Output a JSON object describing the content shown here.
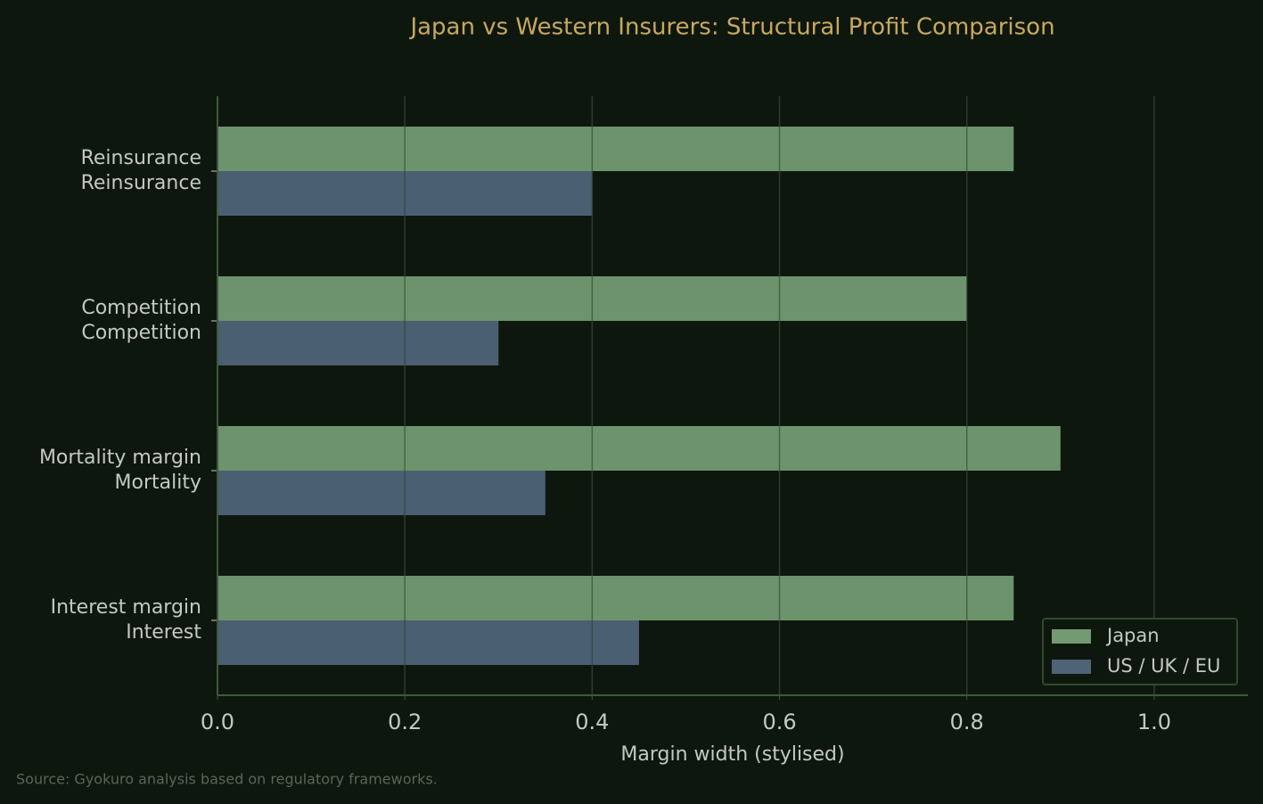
{
  "chart_data": {
    "type": "barh",
    "title": "Japan vs Western Insurers: Structural Profit Comparison",
    "xlabel": "Margin width (stylised)",
    "source": "Source: Gyokuro analysis based on regulatory frameworks.",
    "categories": [
      "Interest margin\nInterest",
      "Mortality margin\nMortality",
      "Competition\nCompetition",
      "Reinsurance\nReinsurance"
    ],
    "series": [
      {
        "name": "Japan",
        "color": "#739a72",
        "values": [
          0.85,
          0.9,
          0.8,
          0.85
        ]
      },
      {
        "name": "US / UK / EU",
        "color": "#4e6377",
        "values": [
          0.45,
          0.35,
          0.3,
          0.4
        ]
      }
    ],
    "xlim": [
      0,
      1.1
    ],
    "xticks": [
      {
        "value": 0,
        "label": "0.0"
      },
      {
        "value": 0.2,
        "label": "0.2"
      },
      {
        "value": 0.4,
        "label": "0.4"
      },
      {
        "value": 0.6,
        "label": "0.6"
      },
      {
        "value": 0.8,
        "label": "0.8"
      },
      {
        "value": 1,
        "label": "1.0"
      }
    ],
    "grid": true,
    "legend": "lower right"
  }
}
